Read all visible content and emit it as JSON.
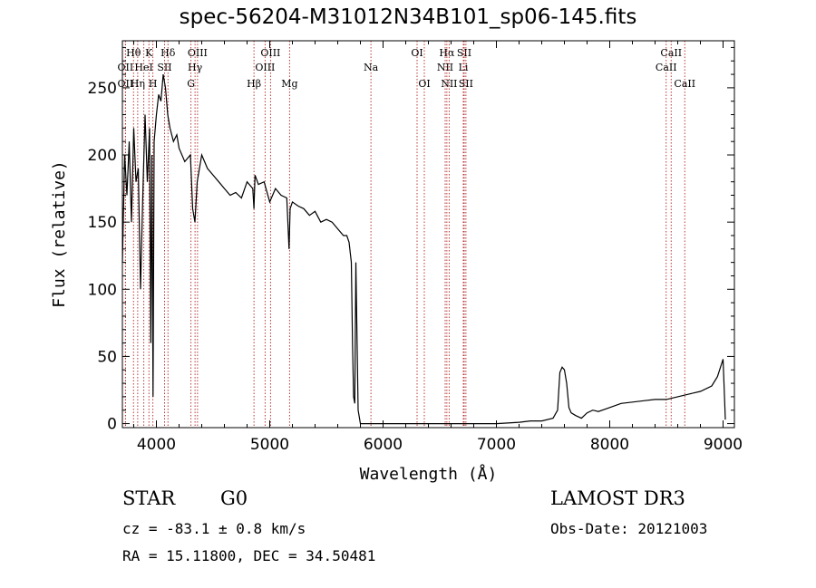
{
  "chart_data": {
    "type": "line",
    "title": "spec-56204-M31012N34B101_sp06-145.fits",
    "xlabel": "Wavelength (Å)",
    "ylabel": "Flux (relative)",
    "xlim": [
      3700,
      9100
    ],
    "ylim": [
      -3,
      285
    ],
    "xticks": [
      4000,
      5000,
      6000,
      7000,
      8000,
      9000
    ],
    "yticks": [
      0,
      50,
      100,
      150,
      200,
      250
    ],
    "series": [
      {
        "name": "flux",
        "x": [
          3700,
          3720,
          3740,
          3760,
          3780,
          3800,
          3820,
          3840,
          3860,
          3880,
          3900,
          3920,
          3940,
          3950,
          3960,
          3970,
          3980,
          4000,
          4020,
          4040,
          4060,
          4080,
          4100,
          4120,
          4150,
          4180,
          4200,
          4250,
          4300,
          4320,
          4340,
          4360,
          4400,
          4450,
          4500,
          4550,
          4600,
          4650,
          4700,
          4750,
          4800,
          4850,
          4861,
          4870,
          4900,
          4950,
          5000,
          5050,
          5100,
          5150,
          5170,
          5180,
          5200,
          5250,
          5300,
          5350,
          5400,
          5450,
          5500,
          5550,
          5600,
          5650,
          5680,
          5700,
          5720,
          5730,
          5740,
          5750,
          5760,
          5780,
          5800,
          5900,
          6000,
          6500,
          7000,
          7200,
          7300,
          7400,
          7500,
          7540,
          7560,
          7580,
          7600,
          7620,
          7640,
          7660,
          7700,
          7750,
          7800,
          7850,
          7900,
          8000,
          8100,
          8200,
          8300,
          8400,
          8500,
          8600,
          8700,
          8800,
          8900,
          8950,
          9000,
          9010,
          9020
        ],
        "y": [
          120,
          200,
          170,
          210,
          150,
          220,
          180,
          190,
          100,
          170,
          230,
          180,
          220,
          60,
          200,
          20,
          210,
          230,
          245,
          240,
          260,
          250,
          230,
          220,
          210,
          215,
          205,
          195,
          200,
          160,
          150,
          180,
          200,
          190,
          185,
          180,
          175,
          170,
          172,
          168,
          180,
          175,
          160,
          185,
          178,
          180,
          165,
          175,
          170,
          168,
          130,
          160,
          165,
          162,
          160,
          155,
          158,
          150,
          152,
          150,
          145,
          140,
          140,
          135,
          120,
          60,
          20,
          15,
          120,
          10,
          0,
          0,
          0,
          0,
          0,
          1,
          2,
          2,
          4,
          10,
          38,
          42,
          40,
          30,
          12,
          8,
          6,
          4,
          8,
          10,
          9,
          12,
          15,
          16,
          17,
          18,
          18,
          20,
          22,
          24,
          28,
          35,
          48,
          25,
          3
        ]
      }
    ],
    "line_markers": [
      {
        "label": "Hθ",
        "x": 3798,
        "row": 1
      },
      {
        "label": "OII",
        "x": 3727,
        "row": 2
      },
      {
        "label": "OII",
        "x": 3727,
        "row": 3
      },
      {
        "label": "K",
        "x": 3934,
        "row": 1
      },
      {
        "label": "HeI",
        "x": 3889,
        "row": 2
      },
      {
        "label": "Hη",
        "x": 3835,
        "row": 3
      },
      {
        "label": "Hδ",
        "x": 4102,
        "row": 1
      },
      {
        "label": "SII",
        "x": 4072,
        "row": 2
      },
      {
        "label": "H",
        "x": 3969,
        "row": 3
      },
      {
        "label": "OIII",
        "x": 4363,
        "row": 1
      },
      {
        "label": "Hγ",
        "x": 4341,
        "row": 2
      },
      {
        "label": "G",
        "x": 4305,
        "row": 3
      },
      {
        "label": "OIII",
        "x": 5007,
        "row": 1
      },
      {
        "label": "OIII",
        "x": 4959,
        "row": 2
      },
      {
        "label": "Hβ",
        "x": 4861,
        "row": 3
      },
      {
        "label": "Mg",
        "x": 5175,
        "row": 3
      },
      {
        "label": "Na",
        "x": 5893,
        "row": 2
      },
      {
        "label": "OI",
        "x": 6300,
        "row": 1
      },
      {
        "label": "OI",
        "x": 6364,
        "row": 3
      },
      {
        "label": "Hα",
        "x": 6563,
        "row": 1
      },
      {
        "label": "NII",
        "x": 6548,
        "row": 2
      },
      {
        "label": "NII",
        "x": 6583,
        "row": 3
      },
      {
        "label": "SII",
        "x": 6716,
        "row": 1
      },
      {
        "label": "Li",
        "x": 6708,
        "row": 2
      },
      {
        "label": "SII",
        "x": 6731,
        "row": 3
      },
      {
        "label": "CaII",
        "x": 8542,
        "row": 1
      },
      {
        "label": "CaII",
        "x": 8498,
        "row": 2
      },
      {
        "label": "CaII",
        "x": 8662,
        "row": 3
      }
    ],
    "marker_color": "#b22222"
  },
  "info": {
    "class": "STAR",
    "subclass": "G0",
    "survey": "LAMOST DR3",
    "cz": "cz = -83.1 ± 0.8 km/s",
    "obs_date": "Obs-Date: 20121003",
    "radec": "RA =  15.11800, DEC =  34.50481"
  }
}
